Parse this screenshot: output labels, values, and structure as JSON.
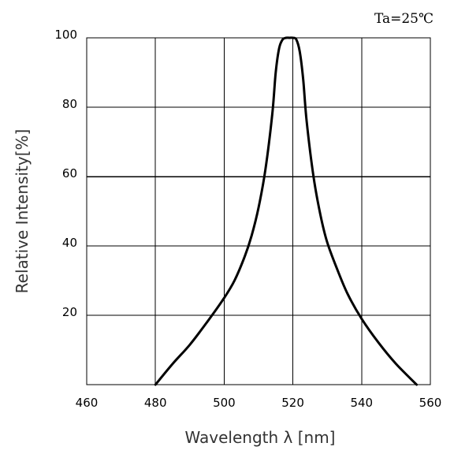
{
  "chart_data": {
    "type": "line",
    "title": "",
    "annotation": "Ta=25℃",
    "xlabel": "Wavelength  λ  [nm]",
    "ylabel": "Relative Intensity[%]",
    "xlim": [
      460,
      560
    ],
    "ylim": [
      0,
      100
    ],
    "x_ticks": [
      460,
      480,
      500,
      520,
      540,
      560
    ],
    "y_ticks": [
      20,
      40,
      60,
      80,
      100
    ],
    "grid": true,
    "series": [
      {
        "x": [
          480,
          485,
          490,
          495,
          500,
          503,
          506,
          508,
          510,
          512,
          514,
          515,
          516,
          517,
          518,
          519,
          520,
          521,
          522,
          523,
          524,
          526,
          528,
          530,
          533,
          536,
          540,
          545,
          550,
          556
        ],
        "y": [
          0,
          6,
          11.5,
          18,
          25,
          30,
          37,
          43,
          51,
          62,
          78,
          90,
          97,
          99.5,
          100,
          100,
          100,
          99.5,
          96,
          88,
          76,
          60,
          49,
          41,
          33,
          26,
          19,
          12,
          6,
          0
        ]
      }
    ]
  }
}
